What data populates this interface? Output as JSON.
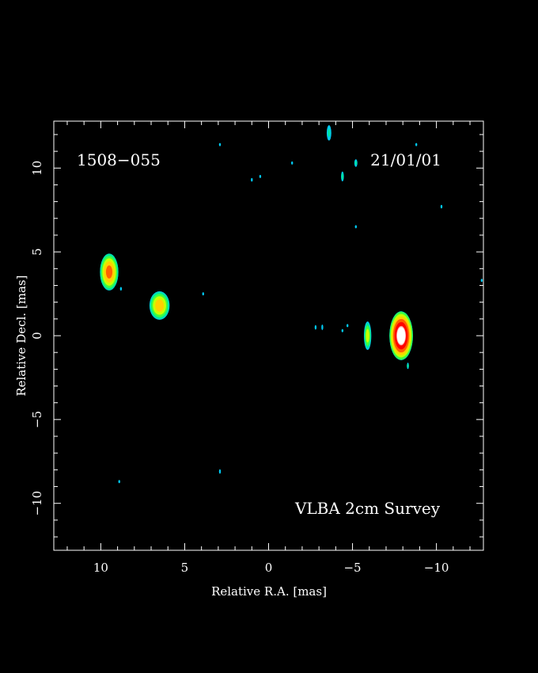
{
  "chart_data": {
    "type": "heatmap",
    "source_name": "1508−055",
    "epoch": "21/01/01",
    "survey": "VLBA 2cm Survey",
    "xlabel": "Relative R.A. [mas]",
    "ylabel": "Relative Decl. [mas]",
    "xlim": [
      12.8,
      -12.8
    ],
    "ylim": [
      -12.8,
      12.8
    ],
    "x_ticks": [
      10,
      5,
      0,
      -5,
      -10
    ],
    "x_tick_labels": [
      "10",
      "5",
      "0",
      "−5",
      "−10"
    ],
    "y_ticks": [
      10,
      5,
      0,
      -5,
      -10
    ],
    "y_tick_labels": [
      "10",
      "5",
      "0",
      "−5",
      "−10"
    ],
    "grid": false,
    "colormap": [
      "#00c8f0",
      "#00e8a0",
      "#40ff40",
      "#c8ff00",
      "#ffd000",
      "#ff6000",
      "#ff0000",
      "#ffb0b0",
      "#ffffff"
    ],
    "components": [
      {
        "ra": -7.9,
        "dec": 0.0,
        "sx": 0.7,
        "sy": 1.45,
        "peak": 1.0
      },
      {
        "ra": -5.9,
        "dec": 0.0,
        "sx": 0.22,
        "sy": 0.85,
        "peak": 0.3
      },
      {
        "ra": 9.5,
        "dec": 3.8,
        "sx": 0.55,
        "sy": 1.1,
        "peak": 0.5
      },
      {
        "ra": 6.5,
        "dec": 1.8,
        "sx": 0.6,
        "sy": 0.85,
        "peak": 0.4
      },
      {
        "ra": -3.6,
        "dec": 12.1,
        "sx": 0.18,
        "sy": 0.6,
        "peak": 0.15
      },
      {
        "ra": -5.2,
        "dec": 10.3,
        "sx": 0.12,
        "sy": 0.3,
        "peak": 0.15
      },
      {
        "ra": -4.4,
        "dec": 9.5,
        "sx": 0.1,
        "sy": 0.35,
        "peak": 0.17
      },
      {
        "ra": 1.0,
        "dec": 9.3,
        "sx": 0.06,
        "sy": 0.3,
        "peak": 0.1
      },
      {
        "ra": 0.5,
        "dec": 9.5,
        "sx": 0.06,
        "sy": 0.2,
        "peak": 0.1
      },
      {
        "ra": -10.3,
        "dec": 7.7,
        "sx": 0.08,
        "sy": 0.3,
        "peak": 0.1
      },
      {
        "ra": -8.8,
        "dec": 11.4,
        "sx": 0.1,
        "sy": 0.2,
        "peak": 0.1
      },
      {
        "ra": -3.2,
        "dec": 0.5,
        "sx": 0.08,
        "sy": 0.3,
        "peak": 0.12
      },
      {
        "ra": -2.8,
        "dec": 0.5,
        "sx": 0.08,
        "sy": 0.25,
        "peak": 0.12
      },
      {
        "ra": -4.4,
        "dec": 0.3,
        "sx": 0.07,
        "sy": 0.25,
        "peak": 0.1
      },
      {
        "ra": 3.9,
        "dec": 2.5,
        "sx": 0.06,
        "sy": 0.25,
        "peak": 0.1
      },
      {
        "ra": 2.9,
        "dec": -8.1,
        "sx": 0.1,
        "sy": 0.25,
        "peak": 0.12
      },
      {
        "ra": 2.9,
        "dec": 11.4,
        "sx": 0.05,
        "sy": 0.2,
        "peak": 0.1
      },
      {
        "ra": -5.2,
        "dec": 6.5,
        "sx": 0.05,
        "sy": 0.15,
        "peak": 0.1
      },
      {
        "ra": -12.7,
        "dec": 3.3,
        "sx": 0.06,
        "sy": 0.2,
        "peak": 0.1
      },
      {
        "ra": 8.9,
        "dec": -8.7,
        "sx": 0.05,
        "sy": 0.15,
        "peak": 0.1
      },
      {
        "ra": 8.8,
        "dec": 2.8,
        "sx": 0.06,
        "sy": 0.3,
        "peak": 0.1
      },
      {
        "ra": -1.4,
        "dec": 10.3,
        "sx": 0.05,
        "sy": 0.12,
        "peak": 0.1
      },
      {
        "ra": -4.7,
        "dec": 0.6,
        "sx": 0.05,
        "sy": 0.2,
        "peak": 0.1
      },
      {
        "ra": -8.3,
        "dec": -1.8,
        "sx": 0.08,
        "sy": 0.25,
        "peak": 0.15
      }
    ]
  }
}
